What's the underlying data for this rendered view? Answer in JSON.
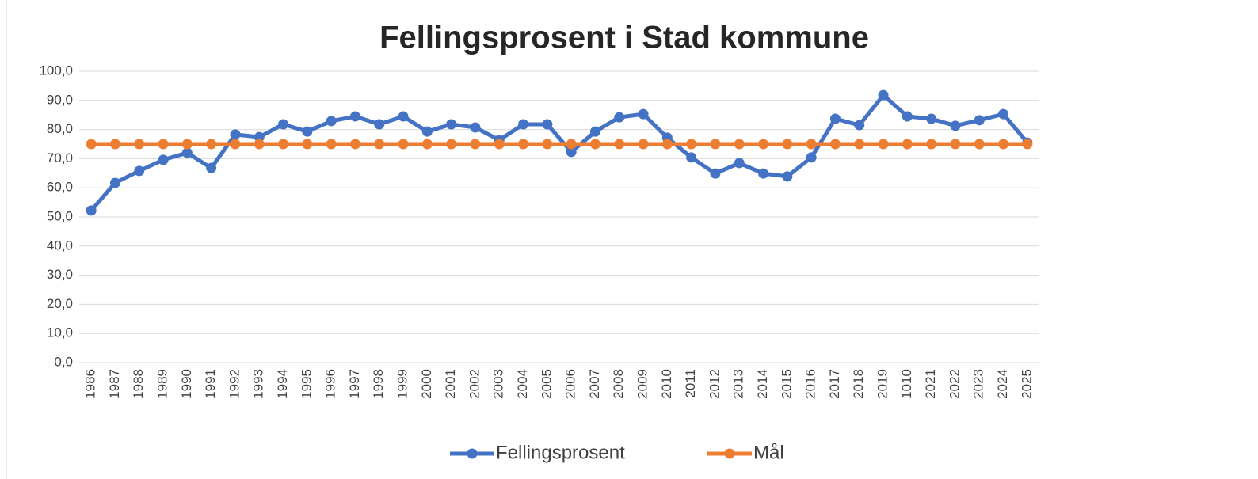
{
  "chart_data": {
    "type": "line",
    "title": "Fellingsprosent i Stad kommune",
    "categories": [
      "1986",
      "1987",
      "1988",
      "1989",
      "1990",
      "1991",
      "1992",
      "1993",
      "1994",
      "1995",
      "1996",
      "1997",
      "1998",
      "1999",
      "2000",
      "2001",
      "2002",
      "2003",
      "2004",
      "2005",
      "2006",
      "2007",
      "2008",
      "2009",
      "2010",
      "2011",
      "2012",
      "2013",
      "2014",
      "2015",
      "2016",
      "2017",
      "2018",
      "2019",
      "1010",
      "2021",
      "2022",
      "2023",
      "2024",
      "2025"
    ],
    "series": [
      {
        "name": "Fellingsprosent",
        "color": "#4472c4",
        "values": [
          52.2,
          61.7,
          65.8,
          69.6,
          72.0,
          66.8,
          78.3,
          77.4,
          81.8,
          79.3,
          82.9,
          84.5,
          81.8,
          84.5,
          79.3,
          81.8,
          80.7,
          76.4,
          81.8,
          81.8,
          72.3,
          79.3,
          84.2,
          85.3,
          77.2,
          70.4,
          64.9,
          68.5,
          64.9,
          63.9,
          70.4,
          83.7,
          81.5,
          91.8,
          84.5,
          83.7,
          81.3,
          83.2,
          85.3,
          75.5
        ]
      },
      {
        "name": "Mål",
        "color": "#ed7d31",
        "values": [
          75,
          75,
          75,
          75,
          75,
          75,
          75,
          75,
          75,
          75,
          75,
          75,
          75,
          75,
          75,
          75,
          75,
          75,
          75,
          75,
          75,
          75,
          75,
          75,
          75,
          75,
          75,
          75,
          75,
          75,
          75,
          75,
          75,
          75,
          75,
          75,
          75,
          75,
          75,
          75
        ]
      }
    ],
    "ylim": [
      0,
      100
    ],
    "yticks": [
      {
        "value": 0,
        "label": "0,0"
      },
      {
        "value": 10,
        "label": "10,0"
      },
      {
        "value": 20,
        "label": "20,0"
      },
      {
        "value": 30,
        "label": "30,0"
      },
      {
        "value": 40,
        "label": "40,0"
      },
      {
        "value": 50,
        "label": "50,0"
      },
      {
        "value": 60,
        "label": "60,0"
      },
      {
        "value": 70,
        "label": "70,0"
      },
      {
        "value": 80,
        "label": "80,0"
      },
      {
        "value": 90,
        "label": "90,0"
      },
      {
        "value": 100,
        "label": "100,0"
      }
    ],
    "grid": true,
    "legend": "bottom"
  }
}
